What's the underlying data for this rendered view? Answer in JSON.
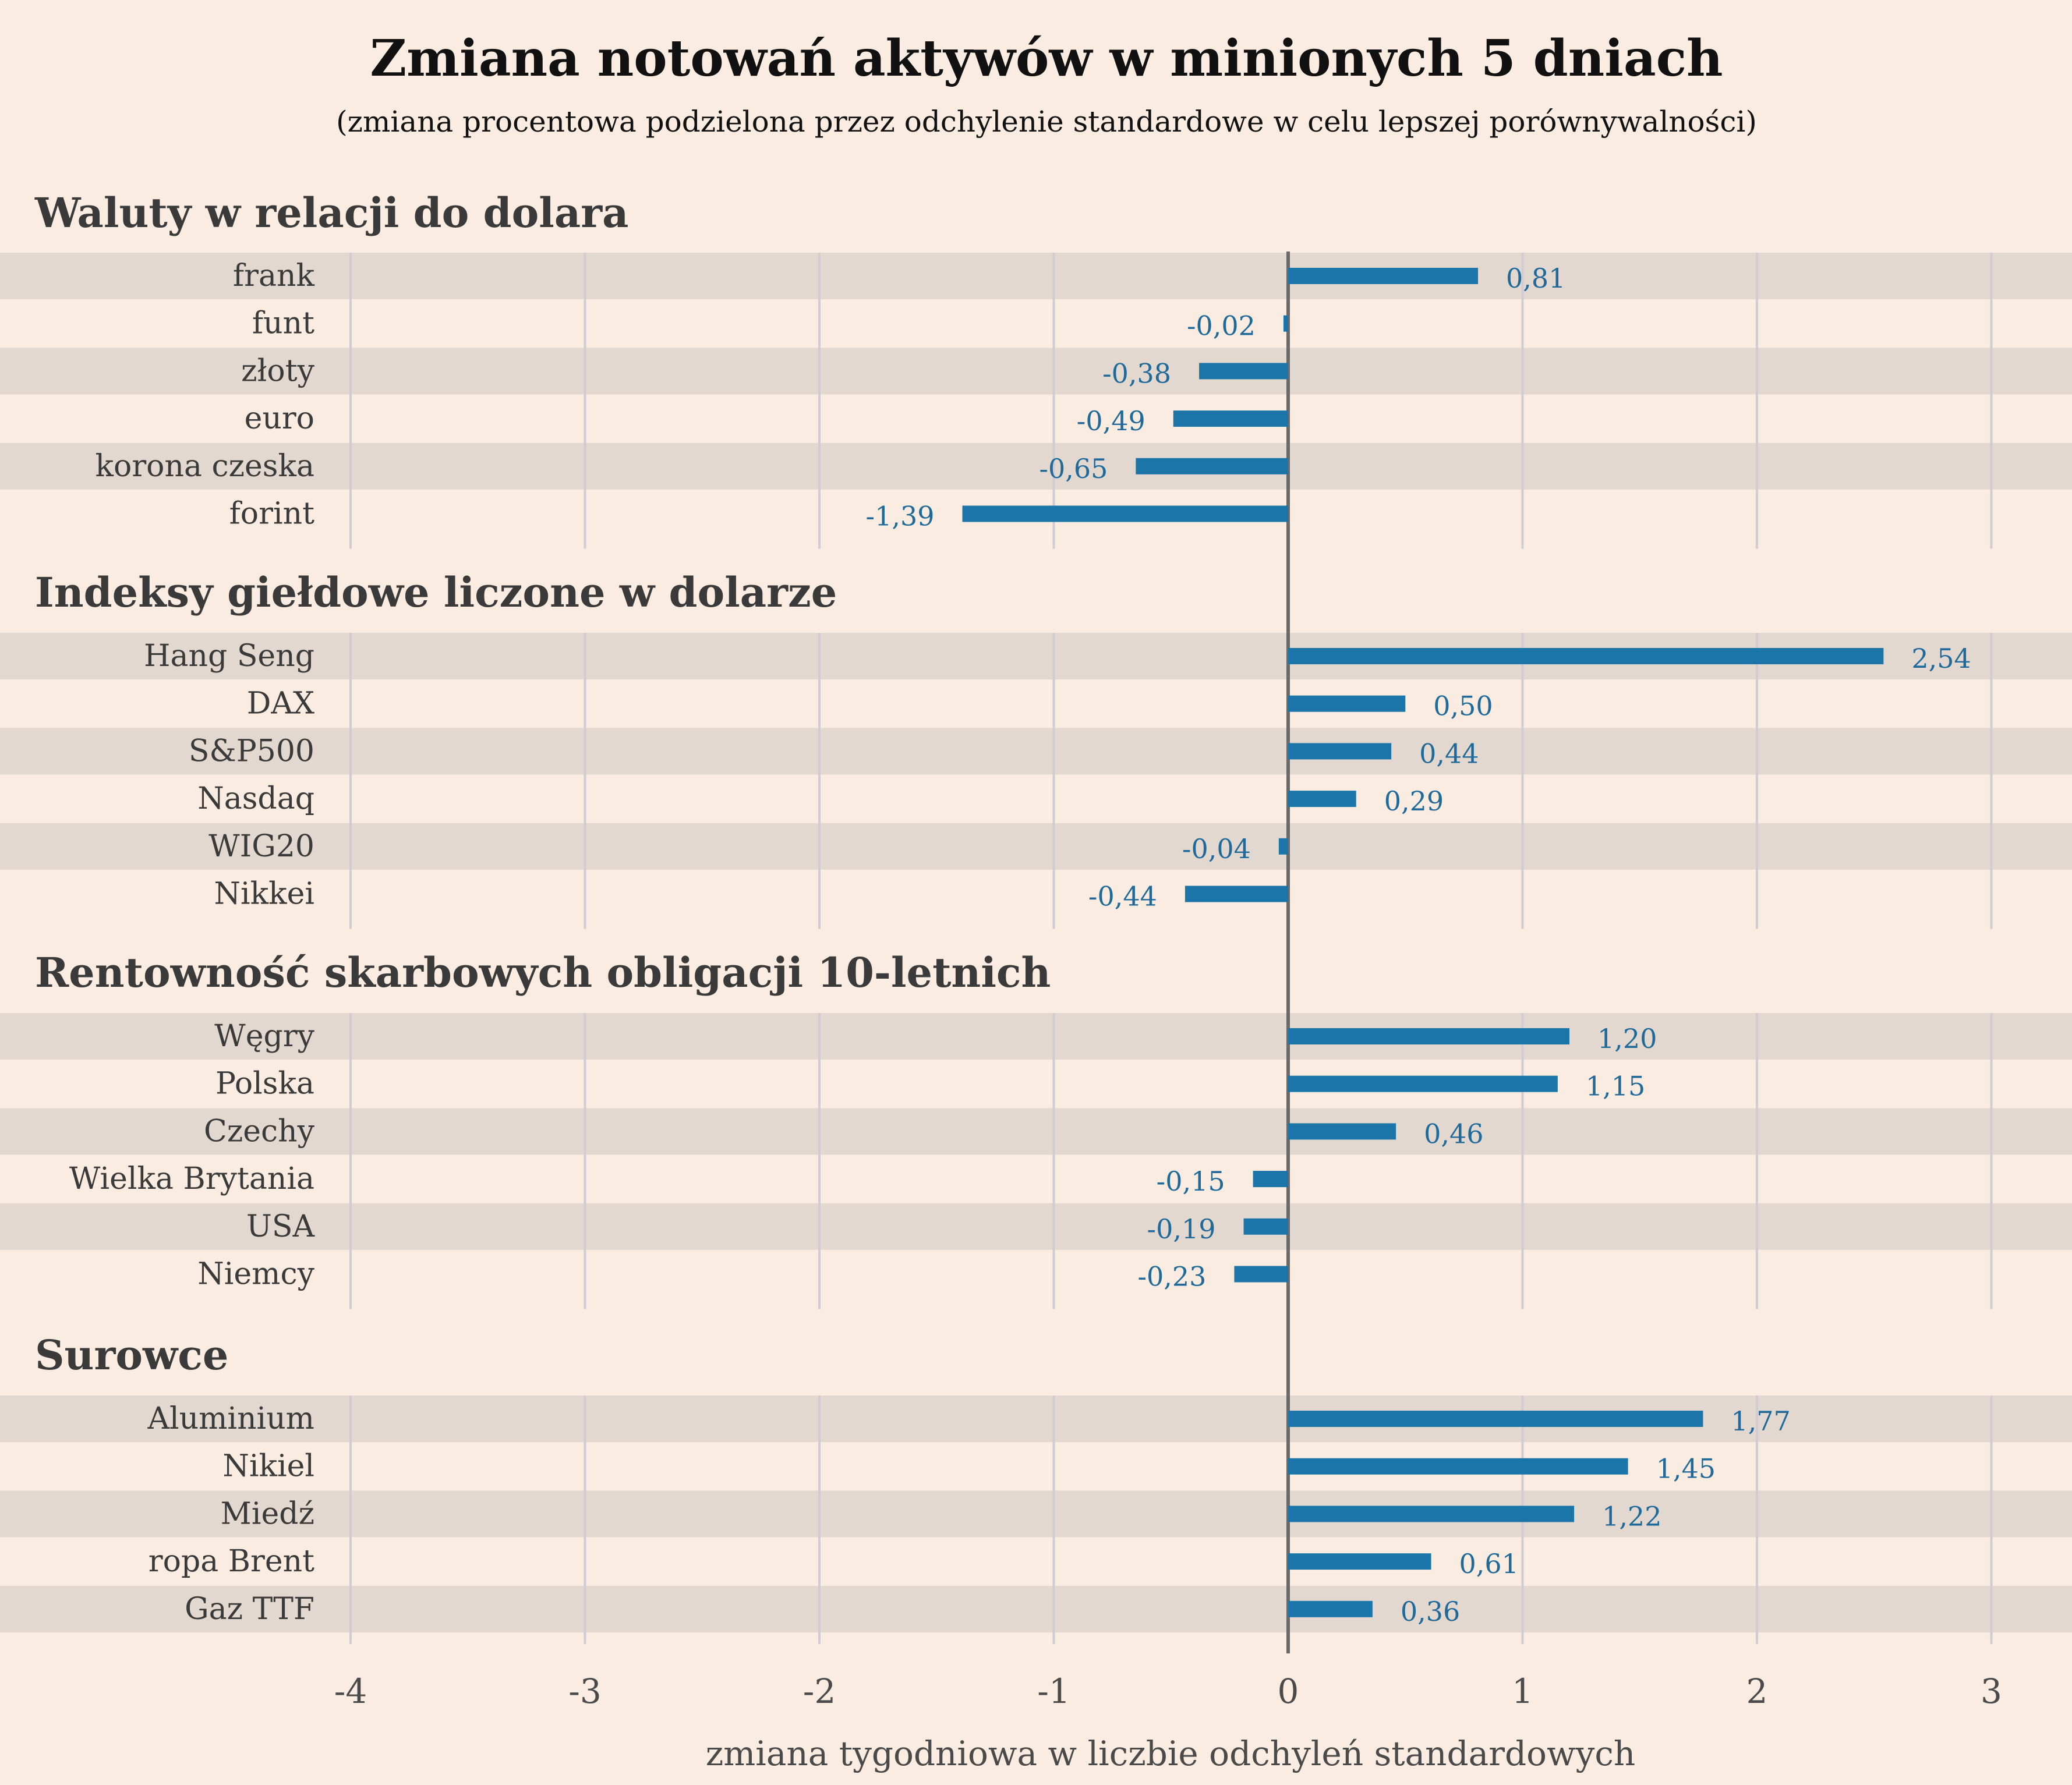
{
  "chart_data": {
    "type": "bar",
    "orientation": "horizontal",
    "title": "Zmiana notowań aktywów w minionych 5 dniach",
    "subtitle": "(zmiana procentowa podzielona przez odchylenie standardowe w celu lepszej porównywalności)",
    "xlabel": "zmiana tygodniowa w liczbie odchyleń standardowych",
    "xlim": [
      -4,
      3
    ],
    "xticks": [
      "-4",
      "-3",
      "-2",
      "-1",
      "0",
      "1",
      "2",
      "3"
    ],
    "grid": true,
    "groups": [
      {
        "name": "Waluty w relacji do dolara",
        "items": [
          {
            "label": "frank",
            "value": 0.81,
            "display": "0,81"
          },
          {
            "label": "funt",
            "value": -0.02,
            "display": "-0,02"
          },
          {
            "label": "złoty",
            "value": -0.38,
            "display": "-0,38"
          },
          {
            "label": "euro",
            "value": -0.49,
            "display": "-0,49"
          },
          {
            "label": "korona czeska",
            "value": -0.65,
            "display": "-0,65"
          },
          {
            "label": "forint",
            "value": -1.39,
            "display": "-1,39"
          }
        ]
      },
      {
        "name": "Indeksy giełdowe liczone w dolarze",
        "items": [
          {
            "label": "Hang Seng",
            "value": 2.54,
            "display": "2,54"
          },
          {
            "label": "DAX",
            "value": 0.5,
            "display": "0,50"
          },
          {
            "label": "S&P500",
            "value": 0.44,
            "display": "0,44"
          },
          {
            "label": "Nasdaq",
            "value": 0.29,
            "display": "0,29"
          },
          {
            "label": "WIG20",
            "value": -0.04,
            "display": "-0,04"
          },
          {
            "label": "Nikkei",
            "value": -0.44,
            "display": "-0,44"
          }
        ]
      },
      {
        "name": "Rentowność skarbowych obligacji 10-letnich",
        "items": [
          {
            "label": "Węgry",
            "value": 1.2,
            "display": "1,20"
          },
          {
            "label": "Polska",
            "value": 1.15,
            "display": "1,15"
          },
          {
            "label": "Czechy",
            "value": 0.46,
            "display": "0,46"
          },
          {
            "label": "Wielka Brytania",
            "value": -0.15,
            "display": "-0,15"
          },
          {
            "label": "USA",
            "value": -0.19,
            "display": "-0,19"
          },
          {
            "label": "Niemcy",
            "value": -0.23,
            "display": "-0,23"
          }
        ]
      },
      {
        "name": "Surowce",
        "items": [
          {
            "label": "Aluminium",
            "value": 1.77,
            "display": "1,77"
          },
          {
            "label": "Nikiel",
            "value": 1.45,
            "display": "1,45"
          },
          {
            "label": "Miedź",
            "value": 1.22,
            "display": "1,22"
          },
          {
            "label": "ropa Brent",
            "value": 0.61,
            "display": "0,61"
          },
          {
            "label": "Gaz TTF",
            "value": 0.36,
            "display": "0,36"
          }
        ]
      }
    ]
  },
  "colors": {
    "background": "#faece0",
    "stripe": "#e3d8cf",
    "grid": "#cfcdd3",
    "zero_line": "#6a6a6a",
    "bar": "#1c75a8",
    "value_label": "#1f6a9a",
    "text": "#3a3a3a"
  }
}
